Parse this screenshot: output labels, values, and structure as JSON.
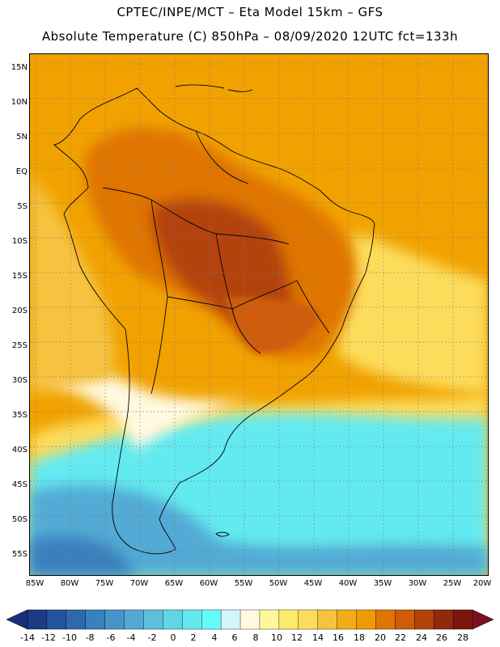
{
  "header": {
    "title_line1": "CPTEC/INPE/MCT –  Eta Model 15km – GFS",
    "title_line2": "Absolute Temperature (C) 850hPa – 08/09/2020 12UTC fct=133h"
  },
  "map": {
    "region": "South America",
    "variable": "Absolute Temperature (C) 850hPa",
    "lat_labels": [
      "15N",
      "10N",
      "5N",
      "EQ",
      "5S",
      "10S",
      "15S",
      "20S",
      "25S",
      "30S",
      "35S",
      "40S",
      "45S",
      "50S",
      "55S"
    ],
    "lon_labels": [
      "85W",
      "80W",
      "75W",
      "70W",
      "65W",
      "60W",
      "55W",
      "50W",
      "45W",
      "40W",
      "35W",
      "30W",
      "25W",
      "20W"
    ]
  },
  "colorbar": {
    "labels": [
      "-14",
      "-12",
      "-10",
      "-8",
      "-6",
      "-4",
      "-2",
      "0",
      "2",
      "4",
      "6",
      "8",
      "10",
      "12",
      "14",
      "16",
      "18",
      "20",
      "22",
      "24",
      "26",
      "28"
    ],
    "colors": [
      "#1c3b87",
      "#23539b",
      "#2d69ad",
      "#3a80be",
      "#4795c8",
      "#52aad4",
      "#5cc0dc",
      "#5fd6e6",
      "#63eaf0",
      "#66fbfb",
      "#d4f6fb",
      "#fff9e0",
      "#fff799",
      "#ffe96b",
      "#fddc5c",
      "#f6c23f",
      "#f0ad18",
      "#ef9a00",
      "#e07503",
      "#cf5d07",
      "#b3420b",
      "#93290a",
      "#7a170c"
    ],
    "low_arrow_color": "#1a2f7a",
    "high_arrow_color": "#7b0f22"
  }
}
